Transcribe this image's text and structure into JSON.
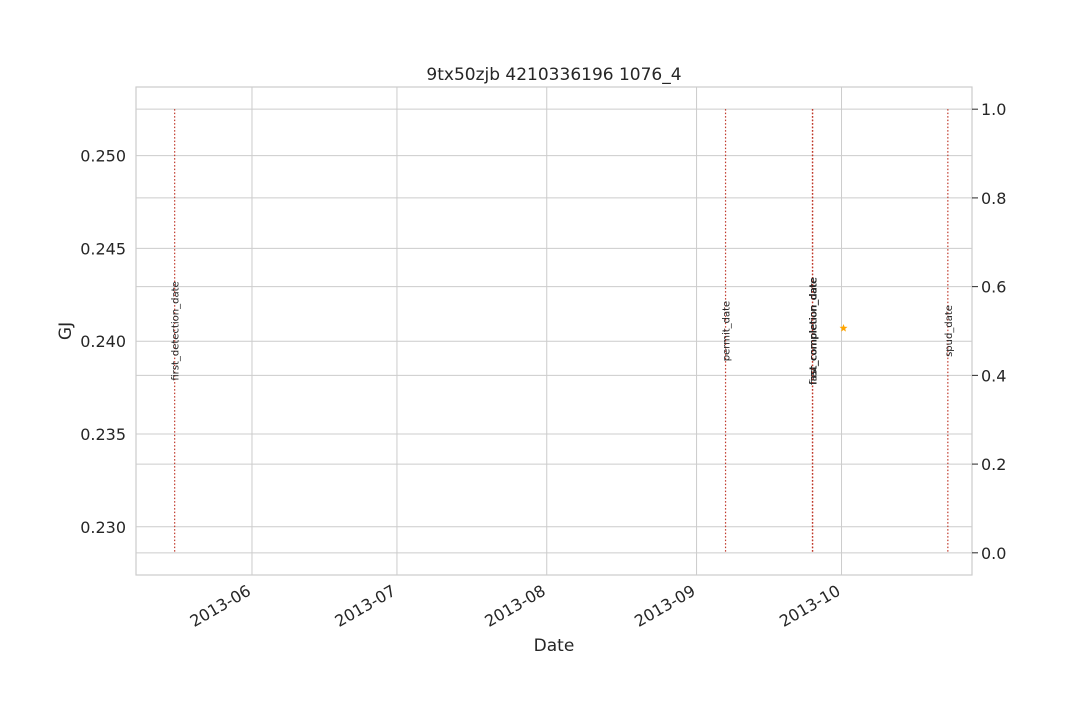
{
  "chart_data": {
    "type": "scatter",
    "title": "9tx50zjb 4210336196 1076_4",
    "xlabel": "Date",
    "ylabel": "GJ",
    "ylabel_color": "#1f77b4",
    "xlim": [
      "2013-05-08",
      "2013-10-28"
    ],
    "ylim": [
      0.2274,
      0.2537
    ],
    "y2lim": [
      -0.05,
      1.05
    ],
    "grid": true,
    "x_ticks": [
      "2013-06-01",
      "2013-07-01",
      "2013-08-01",
      "2013-09-01",
      "2013-10-01"
    ],
    "x_tick_labels": [
      "2013-06",
      "2013-07",
      "2013-08",
      "2013-09",
      "2013-10"
    ],
    "y_ticks": [
      0.23,
      0.235,
      0.24,
      0.245,
      0.25
    ],
    "y_tick_labels": [
      "0.230",
      "0.235",
      "0.240",
      "0.245",
      "0.250"
    ],
    "y2_ticks": [
      0.0,
      0.2,
      0.4,
      0.6,
      0.8,
      1.0
    ],
    "y2_tick_labels": [
      "0.0",
      "0.2",
      "0.4",
      "0.6",
      "0.8",
      "1.0"
    ],
    "series": [
      {
        "marker": "star",
        "color": "#ffa500",
        "points": [
          {
            "x": "2013-10-01",
            "y": 0.2407
          }
        ]
      }
    ],
    "event_lines": {
      "color": "#c0392b",
      "style": "dotted",
      "items": [
        {
          "date": "2013-05-16",
          "label": "first_detection_date"
        },
        {
          "date": "2013-09-07",
          "label": "permit_date"
        },
        {
          "date": "2013-09-25",
          "label": "frac_completion_date"
        },
        {
          "date": "2013-09-25",
          "label": "last_completion_date"
        },
        {
          "date": "2013-09-25",
          "label": "first_completion_date"
        },
        {
          "date": "2013-10-23",
          "label": "spud_date"
        }
      ]
    }
  }
}
